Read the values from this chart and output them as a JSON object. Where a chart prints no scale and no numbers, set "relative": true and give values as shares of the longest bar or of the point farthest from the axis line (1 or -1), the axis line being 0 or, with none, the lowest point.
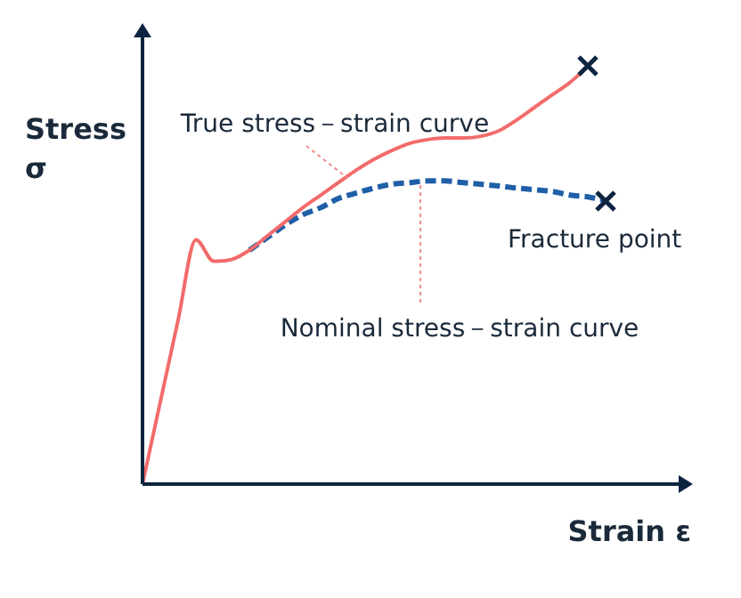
{
  "chart_data": {
    "type": "line",
    "relative": true,
    "xlabel": "Strain ε",
    "ylabel": "Stress σ",
    "categories": [
      null,
      null,
      null,
      null,
      null,
      null,
      null,
      null,
      null,
      null,
      null,
      null,
      null,
      null,
      null,
      null,
      null,
      null,
      null,
      null,
      null,
      null,
      null,
      null,
      null,
      null,
      null,
      null,
      null,
      null,
      null
    ],
    "series": [
      {
        "color": "#f26b6b",
        "line_style": "solid",
        "values": [
          0,
          0.197,
          0.393,
          0.585,
          0.534,
          0.538,
          0.56,
          0.594,
          0.628,
          0.662,
          0.692,
          0.722,
          0.752,
          0.778,
          0.799,
          0.816,
          0.825,
          0.829,
          0.829,
          0.833,
          0.846,
          0.872,
          0.902,
          0.932,
          0.962,
          1,
          null,
          null,
          null,
          null,
          null
        ]
      },
      {
        "color": "#1f5fa8",
        "line_style": "dashed",
        "values": [
          null,
          null,
          null,
          null,
          null,
          null,
          0.56,
          0.59,
          0.62,
          0.645,
          0.662,
          0.684,
          0.697,
          0.709,
          0.718,
          0.722,
          0.726,
          0.726,
          0.722,
          0.718,
          0.714,
          0.709,
          0.705,
          0.701,
          0.692,
          0.688,
          0.679,
          null,
          null,
          null,
          null
        ]
      }
    ],
    "annotations": [
      "True stress－strain curve",
      "Fracture point",
      "Nominal stress－strain curve"
    ],
    "legend": false
  }
}
